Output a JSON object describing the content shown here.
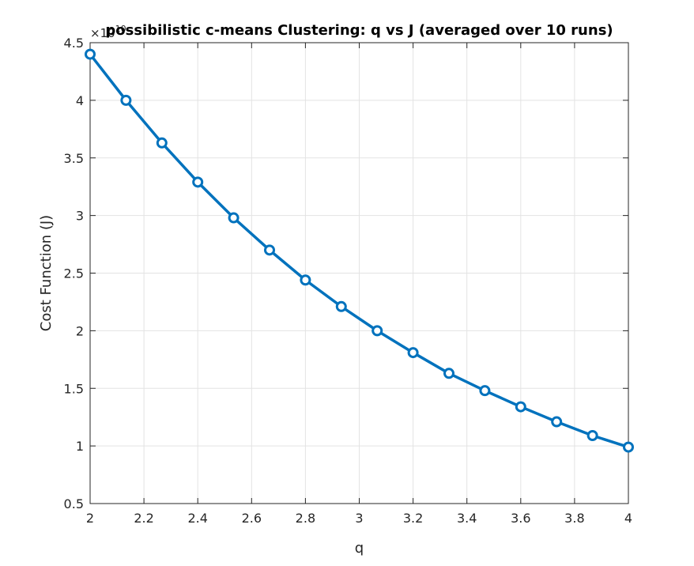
{
  "chart_data": {
    "type": "line",
    "title": "possibilistic c-means Clustering: q vs J (averaged over 10 runs)",
    "xlabel": "q",
    "ylabel": "Cost Function (J)",
    "y_exponent_label": "×10",
    "y_exponent_power": "10",
    "xlim": [
      2,
      4
    ],
    "ylim": [
      0.5,
      4.5
    ],
    "xticks": [
      2,
      2.2,
      2.4,
      2.6,
      2.8,
      3,
      3.2,
      3.4,
      3.6,
      3.8,
      4
    ],
    "xtick_labels": [
      "2",
      "2.2",
      "2.4",
      "2.6",
      "2.8",
      "3",
      "3.2",
      "3.4",
      "3.6",
      "3.8",
      "4"
    ],
    "yticks": [
      0.5,
      1,
      1.5,
      2,
      2.5,
      3,
      3.5,
      4,
      4.5
    ],
    "ytick_labels": [
      "0.5",
      "1",
      "1.5",
      "2",
      "2.5",
      "3",
      "3.5",
      "4",
      "4.5"
    ],
    "grid": true,
    "marker": "circle",
    "line_color": "#0072BD",
    "series": [
      {
        "x": [
          2,
          2.1333,
          2.2667,
          2.4,
          2.5333,
          2.6667,
          2.8,
          2.9333,
          3.0667,
          3.2,
          3.3333,
          3.4667,
          3.6,
          3.7333,
          3.8667,
          4
        ],
        "values": [
          4.4,
          4.0,
          3.63,
          3.29,
          2.98,
          2.7,
          2.44,
          2.21,
          2.0,
          1.81,
          1.63,
          1.48,
          1.34,
          1.21,
          1.09,
          0.99
        ]
      }
    ]
  }
}
